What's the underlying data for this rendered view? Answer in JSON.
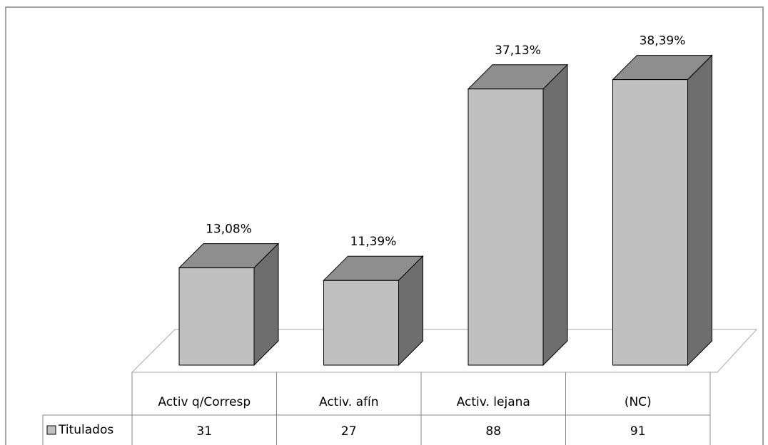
{
  "chart_data": {
    "type": "bar3d",
    "categories": [
      "Activ  q/Corresp",
      "Activ. afín",
      "Activ. lejana",
      "(NC)"
    ],
    "series": [
      {
        "name": "Titulados",
        "color": "#c0c0c0",
        "values": [
          31,
          27,
          88,
          91
        ]
      }
    ],
    "data_labels": [
      "13,08%",
      "11,39%",
      "37,13%",
      "38,39%"
    ],
    "ylim": [
      0,
      100
    ]
  }
}
